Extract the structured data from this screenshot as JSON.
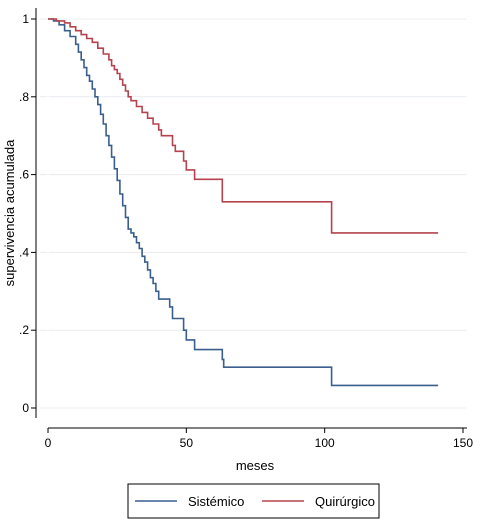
{
  "chart_data": {
    "type": "line",
    "title": "",
    "xlabel": "meses",
    "ylabel": "supervivencia acumulada",
    "xlim": [
      0,
      150
    ],
    "ylim": [
      0,
      1
    ],
    "xticks": [
      0,
      50,
      100,
      150
    ],
    "xtick_labels": [
      "0",
      "50",
      "100",
      "150"
    ],
    "yticks": [
      0,
      0.2,
      0.4,
      0.6,
      0.8,
      1
    ],
    "ytick_labels": [
      "0",
      ".2",
      ".4",
      ".6",
      ".8",
      "1"
    ],
    "grid": true,
    "legend_position": "bottom",
    "step": true,
    "series": [
      {
        "name": "Sistémico",
        "color": "#3a5f8f",
        "points": [
          [
            0,
            1
          ],
          [
            2,
            0.995
          ],
          [
            4,
            0.985
          ],
          [
            6,
            0.97
          ],
          [
            8,
            0.955
          ],
          [
            10,
            0.935
          ],
          [
            11,
            0.915
          ],
          [
            12,
            0.895
          ],
          [
            13,
            0.875
          ],
          [
            14,
            0.855
          ],
          [
            15,
            0.84
          ],
          [
            16,
            0.82
          ],
          [
            17,
            0.8
          ],
          [
            18,
            0.78
          ],
          [
            19,
            0.755
          ],
          [
            20,
            0.73
          ],
          [
            21,
            0.7
          ],
          [
            22,
            0.675
          ],
          [
            23,
            0.645
          ],
          [
            24,
            0.615
          ],
          [
            25,
            0.585
          ],
          [
            26,
            0.55
          ],
          [
            27,
            0.52
          ],
          [
            28,
            0.49
          ],
          [
            29,
            0.46
          ],
          [
            30,
            0.45
          ],
          [
            31,
            0.44
          ],
          [
            32,
            0.425
          ],
          [
            33,
            0.41
          ],
          [
            34,
            0.39
          ],
          [
            35,
            0.375
          ],
          [
            36,
            0.355
          ],
          [
            37,
            0.335
          ],
          [
            38,
            0.32
          ],
          [
            39,
            0.3
          ],
          [
            40,
            0.28
          ],
          [
            44,
            0.26
          ],
          [
            45,
            0.23
          ],
          [
            49,
            0.2
          ],
          [
            50,
            0.175
          ],
          [
            53,
            0.15
          ],
          [
            63,
            0.125
          ],
          [
            63.5,
            0.105
          ],
          [
            102,
            0.105
          ],
          [
            102.5,
            0.058
          ],
          [
            141,
            0.058
          ]
        ]
      },
      {
        "name": "Quirúrgico",
        "color": "#b5434f",
        "points": [
          [
            0,
            1
          ],
          [
            3,
            0.995
          ],
          [
            6,
            0.99
          ],
          [
            8,
            0.98
          ],
          [
            10,
            0.97
          ],
          [
            12,
            0.96
          ],
          [
            14,
            0.95
          ],
          [
            16,
            0.94
          ],
          [
            18,
            0.925
          ],
          [
            20,
            0.91
          ],
          [
            22,
            0.895
          ],
          [
            23,
            0.88
          ],
          [
            24,
            0.87
          ],
          [
            25,
            0.86
          ],
          [
            26,
            0.845
          ],
          [
            27,
            0.83
          ],
          [
            28,
            0.815
          ],
          [
            29,
            0.8
          ],
          [
            30,
            0.79
          ],
          [
            32,
            0.775
          ],
          [
            34,
            0.76
          ],
          [
            36,
            0.745
          ],
          [
            38,
            0.73
          ],
          [
            40,
            0.715
          ],
          [
            41,
            0.7
          ],
          [
            45,
            0.675
          ],
          [
            46,
            0.66
          ],
          [
            49,
            0.635
          ],
          [
            50,
            0.612
          ],
          [
            53,
            0.588
          ],
          [
            62,
            0.588
          ],
          [
            63,
            0.53
          ],
          [
            102,
            0.53
          ],
          [
            102.5,
            0.45
          ],
          [
            141,
            0.45
          ]
        ]
      }
    ]
  }
}
